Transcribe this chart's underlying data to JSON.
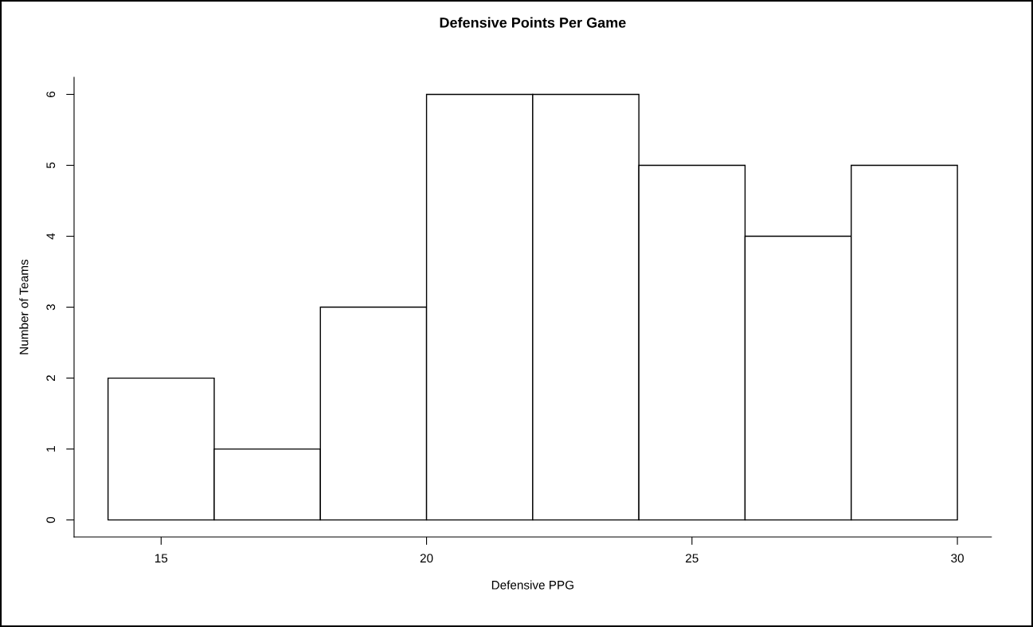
{
  "chart_data": {
    "type": "histogram",
    "title": "Defensive Points Per Game",
    "xlabel": "Defensive PPG",
    "ylabel": "Number of Teams",
    "bins": [
      14,
      16,
      18,
      20,
      22,
      24,
      26,
      28,
      30
    ],
    "values": [
      2,
      1,
      3,
      6,
      6,
      5,
      4,
      5
    ],
    "color": "#ffffff",
    "xlim": [
      13.36,
      30.64
    ],
    "xticks": [
      15,
      20,
      25,
      30
    ],
    "ylim": [
      -0.24,
      6.24
    ],
    "yticks": [
      0,
      1,
      2,
      3,
      4,
      5,
      6
    ],
    "grid": false,
    "legend": false
  }
}
